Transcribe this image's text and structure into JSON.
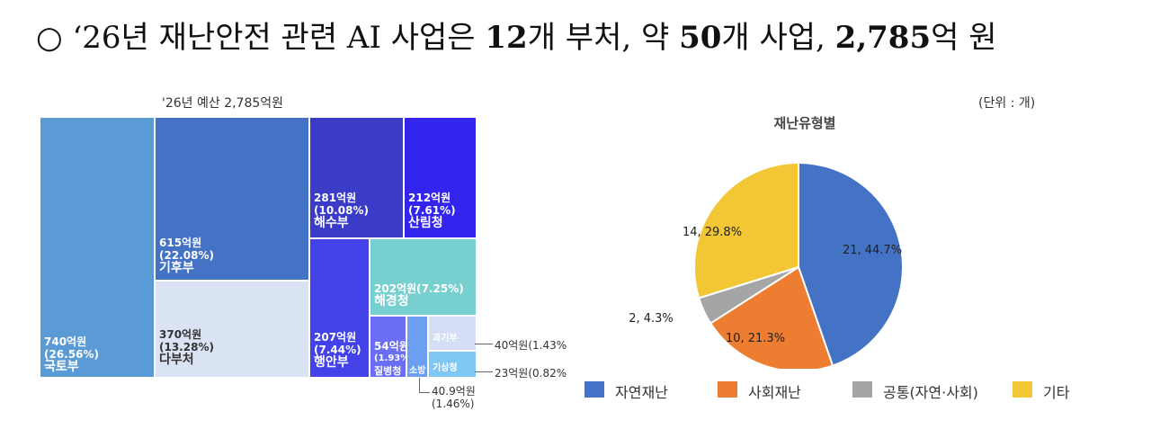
{
  "headline": {
    "prefix": "○ ‘26년 재난안전 관련 AI 사업은 ",
    "bold1": "12",
    "mid1": "개 부처, 약 ",
    "bold2": "50",
    "mid2": "개 사업, ",
    "bold3": "2,785",
    "suffix": "억 원"
  },
  "chart_data": [
    {
      "type": "treemap",
      "title": "'26년 예산 2,785억원",
      "items": [
        {
          "label": "국토부",
          "value_text": "740억원",
          "pct_text": "(26.56%)",
          "value": 740,
          "color": "#5b9bd5"
        },
        {
          "label": "기후부",
          "value_text": "615억원",
          "pct_text": "(22.08%)",
          "value": 615,
          "color": "#4472c4"
        },
        {
          "label": "다부처",
          "value_text": "370억원",
          "pct_text": "(13.28%)",
          "value": 370,
          "color": "#dae3f3"
        },
        {
          "label": "해수부",
          "value_text": "281억원",
          "pct_text": "(10.08%)",
          "value": 281,
          "color": "#3a3cc8"
        },
        {
          "label": "산림청",
          "value_text": "212억원",
          "pct_text": "(7.61%)",
          "value": 212,
          "color": "#3324ee"
        },
        {
          "label": "행안부",
          "value_text": "207억원",
          "pct_text": "(7.44%)",
          "value": 207,
          "color": "#4242e8"
        },
        {
          "label": "해경청",
          "value_text": "202억원(7.25%)",
          "pct_text": "",
          "value": 202,
          "color": "#78cfcf"
        },
        {
          "label": "질병청",
          "value_text": "54억원",
          "pct_text": "(1.93%)",
          "value": 54,
          "color": "#6a6ef5"
        },
        {
          "label": "소방청",
          "value_text": "40.9억원",
          "pct_text": "(1.46%)",
          "value": 40.9,
          "color": "#6c9ff2"
        },
        {
          "label": "과기부",
          "value_text": "40억원(1.43%",
          "pct_text": "",
          "value": 40,
          "color": "#d4def5"
        },
        {
          "label": "기상청",
          "value_text": "23억원(0.82%",
          "pct_text": "",
          "value": 23,
          "color": "#7fc8f3"
        }
      ]
    },
    {
      "type": "pie",
      "title": "재난유형별",
      "unit": "(단위 : 개)",
      "slices": [
        {
          "name": "자연재난",
          "value": 21,
          "label": "21, 44.7%",
          "color": "#4472c4"
        },
        {
          "name": "사회재난",
          "value": 10,
          "label": "10, 21.3%",
          "color": "#ed7d31"
        },
        {
          "name": "공통(자연·사회)",
          "value": 2,
          "label": "2, 4.3%",
          "color": "#a5a5a5"
        },
        {
          "name": "기타",
          "value": 14,
          "label": "14, 29.8%",
          "color": "#f2c634"
        }
      ],
      "legend_position": "bottom"
    }
  ]
}
